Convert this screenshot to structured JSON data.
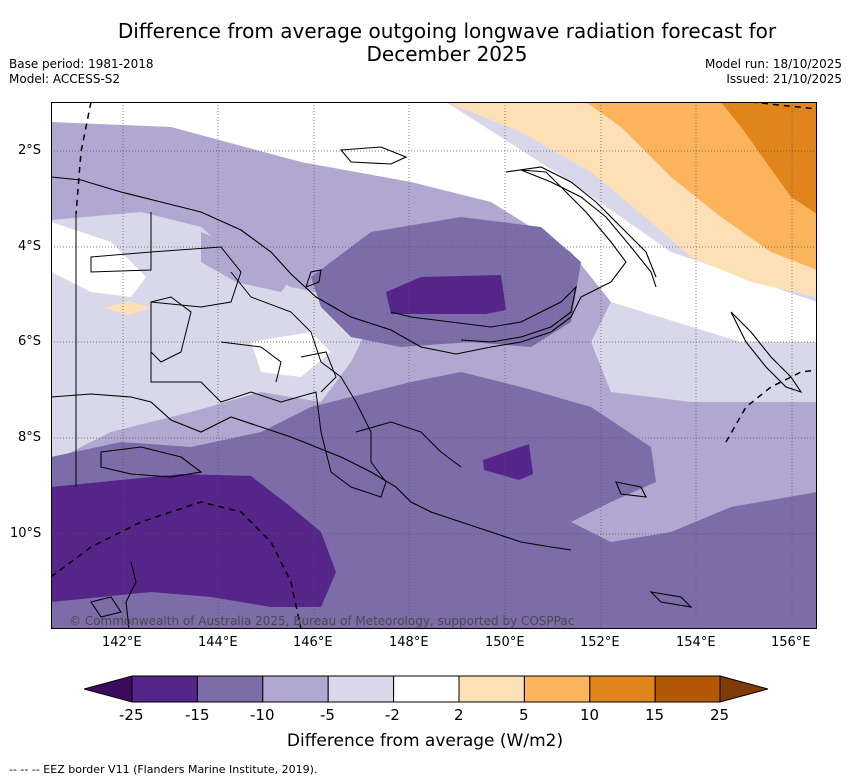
{
  "header": {
    "title_line1": "Difference from average outgoing longwave radiation forecast for",
    "title_line2": "December 2025",
    "base_period": "Base period: 1981-2018",
    "model": "Model: ACCESS-S2",
    "model_run": "Model run: 18/10/2025",
    "issued": "Issued: 21/10/2025"
  },
  "map": {
    "lat_labels": [
      "2°S",
      "4°S",
      "6°S",
      "8°S",
      "10°S"
    ],
    "lon_labels": [
      "142°E",
      "144°E",
      "146°E",
      "148°E",
      "150°E",
      "152°E",
      "154°E",
      "156°E"
    ],
    "copyright": "© Commonwealth of Australia 2025, Bureau of Meteorology, supported by COSPPac",
    "colors": {
      "lt_minus25": "#3b0c5e",
      "minus25_minus15": "#56258a",
      "minus15_minus10": "#7c6ca8",
      "minus10_minus5": "#b0a8d0",
      "minus5_minus2": "#d8d8ea",
      "minus2_2": "#ffffff",
      "2_5": "#fde0b6",
      "5_10": "#fbb35c",
      "10_15": "#e0841b",
      "15_25": "#b35807",
      "gt25": "#7f3b08"
    }
  },
  "colorbar": {
    "ticks": [
      "-25",
      "-15",
      "-10",
      "-5",
      "-2",
      "2",
      "5",
      "10",
      "15",
      "25"
    ],
    "title": "Difference from average (W/m2)"
  },
  "footer": {
    "eez_legend": "--  --  -- EEZ border V11 (Flanders Marine Institute, 2019)."
  }
}
